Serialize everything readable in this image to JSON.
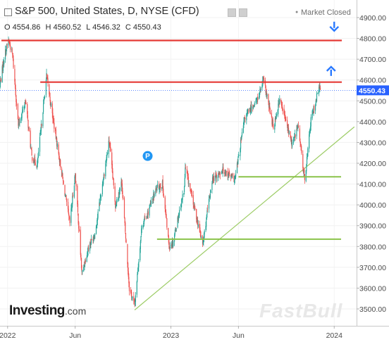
{
  "header": {
    "title": "S&P 500, United States, D, NYSE (CFD)",
    "ohlc": [
      {
        "key": "O",
        "value": "4554.86"
      },
      {
        "key": "H",
        "value": "4560.52"
      },
      {
        "key": "L",
        "value": "4546.32"
      },
      {
        "key": "C",
        "value": "4550.43"
      }
    ],
    "market_status": "Market Closed",
    "collapse_icon": "square-toggle-icon",
    "settings_icon": "settings-icon",
    "close_icon": "close-icon"
  },
  "branding": {
    "logo_main": "Investing",
    "logo_domain": ".com",
    "watermark": "FastBull"
  },
  "colors": {
    "up": "#26a69a",
    "down": "#ef5350",
    "resistance": "#e53935",
    "support": "#8bc34a",
    "trendline": "#9ccc65",
    "price_badge": "#2962ff",
    "arrow": "#2979ff",
    "marker": "#2196f3"
  },
  "chart_data": {
    "type": "candlestick",
    "title": "S&P 500, United States, D, NYSE (CFD)",
    "last_price": {
      "label": "4550.43",
      "value": 4550.43
    },
    "y_axis": {
      "range": [
        4475,
        4940
      ],
      "tick_labels": [
        "4900.00",
        "4800.00",
        "4700.00",
        "4600.00",
        "4500.00",
        "4400.00",
        "4300.00",
        "4200.00",
        "4100.00",
        "4000.00",
        "3900.00",
        "3800.00",
        "3700.00",
        "3600.00",
        "3500.00"
      ],
      "tick_values": [
        4900,
        4800,
        4700,
        4600,
        4500,
        4400,
        4300,
        4200,
        4100,
        4000,
        3900,
        3800,
        3700,
        3600,
        3500
      ]
    },
    "x_axis": {
      "range": [
        "2021-12-15",
        "2024-02-20"
      ],
      "tick_labels": [
        "2022",
        "Jun",
        "2023",
        "Jun",
        "2024"
      ],
      "tick_dates": [
        "2022-01-01",
        "2022-06-01",
        "2023-01-01",
        "2023-06-01",
        "2024-01-01"
      ]
    },
    "price_path": [
      {
        "date": "2021-12-15",
        "value": 4580
      },
      {
        "date": "2021-12-25",
        "value": 4720
      },
      {
        "date": "2022-01-03",
        "value": 4790
      },
      {
        "date": "2022-01-12",
        "value": 4720
      },
      {
        "date": "2022-01-25",
        "value": 4380
      },
      {
        "date": "2022-02-10",
        "value": 4500
      },
      {
        "date": "2022-02-24",
        "value": 4230
      },
      {
        "date": "2022-03-08",
        "value": 4190
      },
      {
        "date": "2022-03-29",
        "value": 4620
      },
      {
        "date": "2022-04-12",
        "value": 4420
      },
      {
        "date": "2022-05-02",
        "value": 4150
      },
      {
        "date": "2022-05-20",
        "value": 3910
      },
      {
        "date": "2022-06-01",
        "value": 4150
      },
      {
        "date": "2022-06-16",
        "value": 3670
      },
      {
        "date": "2022-07-01",
        "value": 3800
      },
      {
        "date": "2022-07-15",
        "value": 3860
      },
      {
        "date": "2022-08-16",
        "value": 4310
      },
      {
        "date": "2022-08-30",
        "value": 4000
      },
      {
        "date": "2022-09-13",
        "value": 4110
      },
      {
        "date": "2022-09-30",
        "value": 3600
      },
      {
        "date": "2022-10-12",
        "value": 3520
      },
      {
        "date": "2022-10-28",
        "value": 3900
      },
      {
        "date": "2022-11-10",
        "value": 3960
      },
      {
        "date": "2022-11-30",
        "value": 4080
      },
      {
        "date": "2022-12-13",
        "value": 4100
      },
      {
        "date": "2022-12-28",
        "value": 3800
      },
      {
        "date": "2023-01-05",
        "value": 3820
      },
      {
        "date": "2023-01-31",
        "value": 4080
      },
      {
        "date": "2023-02-02",
        "value": 4180
      },
      {
        "date": "2023-02-24",
        "value": 3970
      },
      {
        "date": "2023-03-13",
        "value": 3810
      },
      {
        "date": "2023-04-03",
        "value": 4120
      },
      {
        "date": "2023-04-28",
        "value": 4170
      },
      {
        "date": "2023-05-24",
        "value": 4120
      },
      {
        "date": "2023-06-15",
        "value": 4420
      },
      {
        "date": "2023-07-14",
        "value": 4510
      },
      {
        "date": "2023-07-27",
        "value": 4600
      },
      {
        "date": "2023-08-18",
        "value": 4370
      },
      {
        "date": "2023-09-01",
        "value": 4510
      },
      {
        "date": "2023-09-29",
        "value": 4290
      },
      {
        "date": "2023-10-12",
        "value": 4380
      },
      {
        "date": "2023-10-27",
        "value": 4120
      },
      {
        "date": "2023-11-10",
        "value": 4410
      },
      {
        "date": "2023-11-28",
        "value": 4560
      },
      {
        "date": "2023-12-01",
        "value": 4550
      }
    ],
    "annotations": [
      {
        "type": "horizontal",
        "name": "resistance-high",
        "value": 4790
      },
      {
        "type": "horizontal",
        "name": "resistance-current",
        "value": 4590,
        "from": "2022-03-15"
      },
      {
        "type": "horizontal",
        "name": "support-upper",
        "value": 4135,
        "from": "2023-06-01"
      },
      {
        "type": "horizontal",
        "name": "support-lower",
        "value": 3835,
        "from": "2022-12-01"
      },
      {
        "type": "trendline",
        "name": "rising-trendline",
        "from": {
          "date": "2022-10-12",
          "value": 3495
        },
        "to": {
          "date": "2024-02-15",
          "value": 4375
        }
      },
      {
        "type": "arrow",
        "direction": "down",
        "date": "2024-01-01",
        "value": 4860
      },
      {
        "type": "arrow",
        "direction": "up",
        "date": "2023-12-25",
        "value": 4640
      },
      {
        "type": "marker",
        "label": "P",
        "date": "2022-11-10",
        "value": 4235
      }
    ]
  }
}
